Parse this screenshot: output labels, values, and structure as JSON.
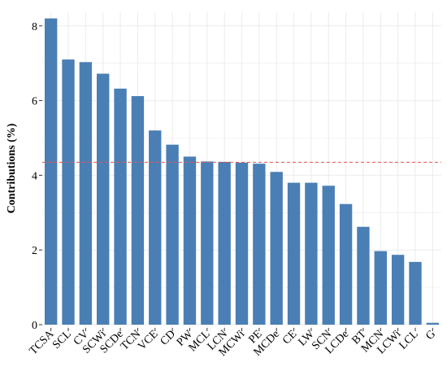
{
  "chart_data": {
    "type": "bar",
    "title": "",
    "xlabel": "",
    "ylabel": "Contributions (%)",
    "ylim": [
      0,
      8.4
    ],
    "yticks": [
      0,
      2,
      4,
      6,
      8
    ],
    "grid": true,
    "categories": [
      "TCSA",
      "SCL",
      "CV",
      "SCWi",
      "SCDe",
      "TCN",
      "VCE",
      "CD",
      "PW",
      "MCL",
      "LCN",
      "MCWi",
      "PE",
      "MCDe",
      "CE",
      "LW",
      "SCN",
      "LCDe",
      "BT",
      "MCN",
      "LCWi",
      "LCL",
      "G"
    ],
    "values": [
      8.2,
      7.1,
      7.03,
      6.72,
      6.32,
      6.12,
      5.2,
      4.82,
      4.5,
      4.37,
      4.36,
      4.34,
      4.31,
      4.09,
      3.8,
      3.8,
      3.72,
      3.23,
      2.62,
      1.97,
      1.87,
      1.68,
      0.05
    ],
    "reference_line": {
      "value": 4.35,
      "style": "dashed"
    },
    "colors": {
      "bar": "#4a7fb5",
      "reference_line": "#e8534f",
      "grid": "#ebebeb"
    }
  }
}
